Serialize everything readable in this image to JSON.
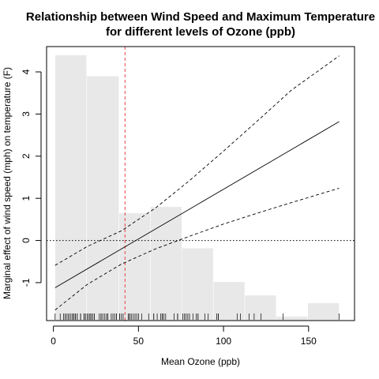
{
  "chart_data": {
    "type": "line",
    "title_line1": "Relationship between Wind Speed and Maximum Temperature",
    "title_line2": "for different levels of Ozone (ppb)",
    "xlabel": "Mean Ozone (ppb)",
    "ylabel": "Marginal effect of wind speed (mph) on temperature (F)",
    "xlim": [
      -4,
      177
    ],
    "ylim": [
      -1.9,
      4.6
    ],
    "x_ticks": [
      0,
      50,
      100,
      150
    ],
    "y_ticks": [
      -1,
      0,
      1,
      2,
      3,
      4
    ],
    "grid": false,
    "reference_line": {
      "y": 0,
      "style": "dotted",
      "color": "#000000"
    },
    "vertical_marker": {
      "x": 42.1,
      "style": "dashed",
      "color": "#e8434b"
    },
    "histogram_color": "#e8e8e8",
    "histogram": [
      {
        "x0": 1,
        "x1": 19.5,
        "height": 4.4
      },
      {
        "x0": 19.5,
        "x1": 38.5,
        "height": 3.9
      },
      {
        "x0": 38.5,
        "x1": 57,
        "height": 0.65
      },
      {
        "x0": 57,
        "x1": 75.5,
        "height": 0.8
      },
      {
        "x0": 75.5,
        "x1": 94,
        "height": -0.18
      },
      {
        "x0": 94,
        "x1": 112.5,
        "height": -0.98
      },
      {
        "x0": 112.5,
        "x1": 131,
        "height": -1.3
      },
      {
        "x0": 131,
        "x1": 149.5,
        "height": -1.8
      },
      {
        "x0": 149.5,
        "x1": 168,
        "height": -1.48
      }
    ],
    "series": [
      {
        "line": "solid",
        "x": [
          1,
          168
        ],
        "y": [
          -1.12,
          2.82
        ]
      },
      {
        "line": "dashed",
        "x": [
          1,
          20,
          40,
          60,
          80,
          100,
          120,
          140,
          168
        ],
        "y": [
          -0.59,
          -0.14,
          0.23,
          0.77,
          1.42,
          2.12,
          2.84,
          3.57,
          4.38
        ]
      },
      {
        "line": "dashed",
        "x": [
          1,
          20,
          40,
          60,
          80,
          100,
          120,
          140,
          168
        ],
        "y": [
          -1.65,
          -1.04,
          -0.56,
          -0.2,
          0.1,
          0.39,
          0.65,
          0.9,
          1.24
        ]
      }
    ],
    "rug_x": [
      1,
      4,
      6,
      7,
      7,
      8,
      9,
      9,
      10,
      11,
      11,
      12,
      12,
      13,
      13,
      14,
      14,
      16,
      16,
      18,
      18,
      18,
      19,
      20,
      20,
      21,
      21,
      21,
      22,
      22,
      23,
      23,
      24,
      24,
      27,
      28,
      28,
      29,
      30,
      31,
      32,
      32,
      34,
      35,
      36,
      37,
      37,
      39,
      39,
      40,
      41,
      44,
      44,
      45,
      45,
      46,
      47,
      48,
      49,
      50,
      52,
      56,
      59,
      59,
      61,
      63,
      64,
      64,
      65,
      66,
      71,
      73,
      73,
      76,
      77,
      78,
      79,
      80,
      82,
      84,
      85,
      85,
      89,
      91,
      96,
      97,
      97,
      108,
      110,
      115,
      118,
      122,
      135,
      168
    ]
  }
}
